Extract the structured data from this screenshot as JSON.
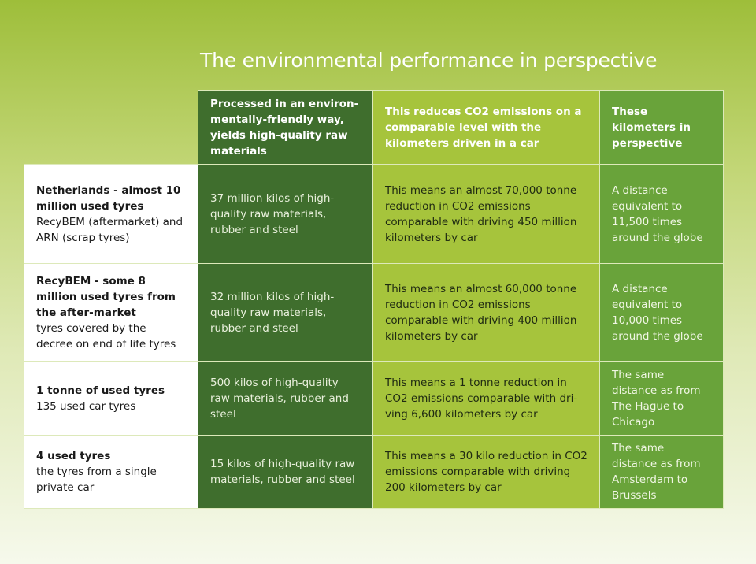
{
  "title": "The environmental performance in perspective",
  "headers": {
    "processed": "Processed in an environ-mentally-friendly way, yields high-quality raw materials",
    "co2": "This reduces CO2 emissions on a comparable level with the kilometers driven in a car",
    "perspective": "These kilometers in perspective"
  },
  "rows": [
    {
      "label_title": "Netherlands - almost 10 million used tyres",
      "label_sub": "RecyBEM (aftermarket) and ARN (scrap tyres)",
      "processed": "37 million kilos of high-quality raw materials, rubber and steel",
      "co2": "This means an almost 70,000 tonne reduction in CO2 emissions comparable with driving 450 million kilometers by car",
      "perspective": "A distance equivalent to 11,500 times around the globe"
    },
    {
      "label_title": "RecyBEM - some 8 million used tyres from the after-market",
      "label_sub": "tyres covered by the decree on end of life tyres",
      "processed": "32 million kilos of high-quality raw materials, rubber and steel",
      "co2": "This means an almost 60,000 tonne reduction in CO2 emissions comparable with driving 400 million kilometers by car",
      "perspective": "A distance equivalent to 10,000 times around the globe"
    },
    {
      "label_title": "1 tonne of used tyres",
      "label_sub": "135 used car tyres",
      "processed": "500 kilos of high-quality raw materials, rubber and steel",
      "co2": "This means a 1 tonne reduction in CO2 emissions comparable with dri-ving 6,600 kilometers by car",
      "perspective": "The same distance as from The Hague to Chicago"
    },
    {
      "label_title": "4 used tyres",
      "label_sub": "the tyres from a single private car",
      "processed": "15 kilos of high-quality raw materials, rubber and steel",
      "co2": "This means a 30 kilo reduction in CO2 emissions comparable with driving 200 kilometers by car",
      "perspective": "The same distance as from Amsterdam to Brussels"
    }
  ]
}
